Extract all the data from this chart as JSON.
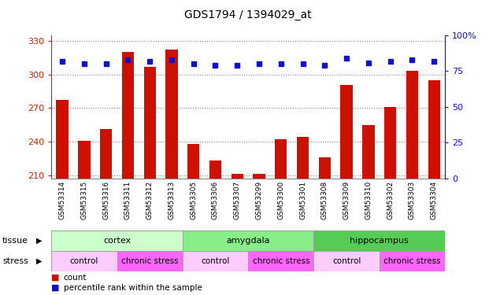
{
  "title": "GDS1794 / 1394029_at",
  "samples": [
    "GSM53314",
    "GSM53315",
    "GSM53316",
    "GSM53311",
    "GSM53312",
    "GSM53313",
    "GSM53305",
    "GSM53306",
    "GSM53307",
    "GSM53299",
    "GSM53300",
    "GSM53301",
    "GSM53308",
    "GSM53309",
    "GSM53310",
    "GSM53302",
    "GSM53303",
    "GSM53304"
  ],
  "counts": [
    277,
    241,
    251,
    320,
    307,
    322,
    238,
    223,
    211,
    211,
    242,
    244,
    226,
    291,
    255,
    271,
    303,
    295
  ],
  "percentiles": [
    82,
    80,
    80,
    83,
    82,
    83,
    80,
    79,
    79,
    80,
    80,
    80,
    79,
    84,
    81,
    82,
    83,
    82
  ],
  "ylim_left": [
    207,
    335
  ],
  "ylim_right": [
    0,
    100
  ],
  "yticks_left": [
    210,
    240,
    270,
    300,
    330
  ],
  "yticks_right": [
    0,
    25,
    50,
    75,
    100
  ],
  "bar_color": "#cc1100",
  "dot_color": "#1111cc",
  "tissue_groups": [
    {
      "label": "cortex",
      "start": 0,
      "end": 6,
      "color": "#ccffcc"
    },
    {
      "label": "amygdala",
      "start": 6,
      "end": 12,
      "color": "#88ee88"
    },
    {
      "label": "hippocampus",
      "start": 12,
      "end": 18,
      "color": "#55cc55"
    }
  ],
  "stress_groups": [
    {
      "label": "control",
      "start": 0,
      "end": 3,
      "color": "#ffccff"
    },
    {
      "label": "chronic stress",
      "start": 3,
      "end": 6,
      "color": "#ff66ff"
    },
    {
      "label": "control",
      "start": 6,
      "end": 9,
      "color": "#ffccff"
    },
    {
      "label": "chronic stress",
      "start": 9,
      "end": 12,
      "color": "#ff66ff"
    },
    {
      "label": "control",
      "start": 12,
      "end": 15,
      "color": "#ffccff"
    },
    {
      "label": "chronic stress",
      "start": 15,
      "end": 18,
      "color": "#ff66ff"
    }
  ],
  "tissue_label": "tissue",
  "stress_label": "stress",
  "legend_count": "count",
  "legend_pct": "percentile rank within the sample",
  "grid_color": "#888888",
  "background_color": "#ffffff",
  "bar_width": 0.55
}
